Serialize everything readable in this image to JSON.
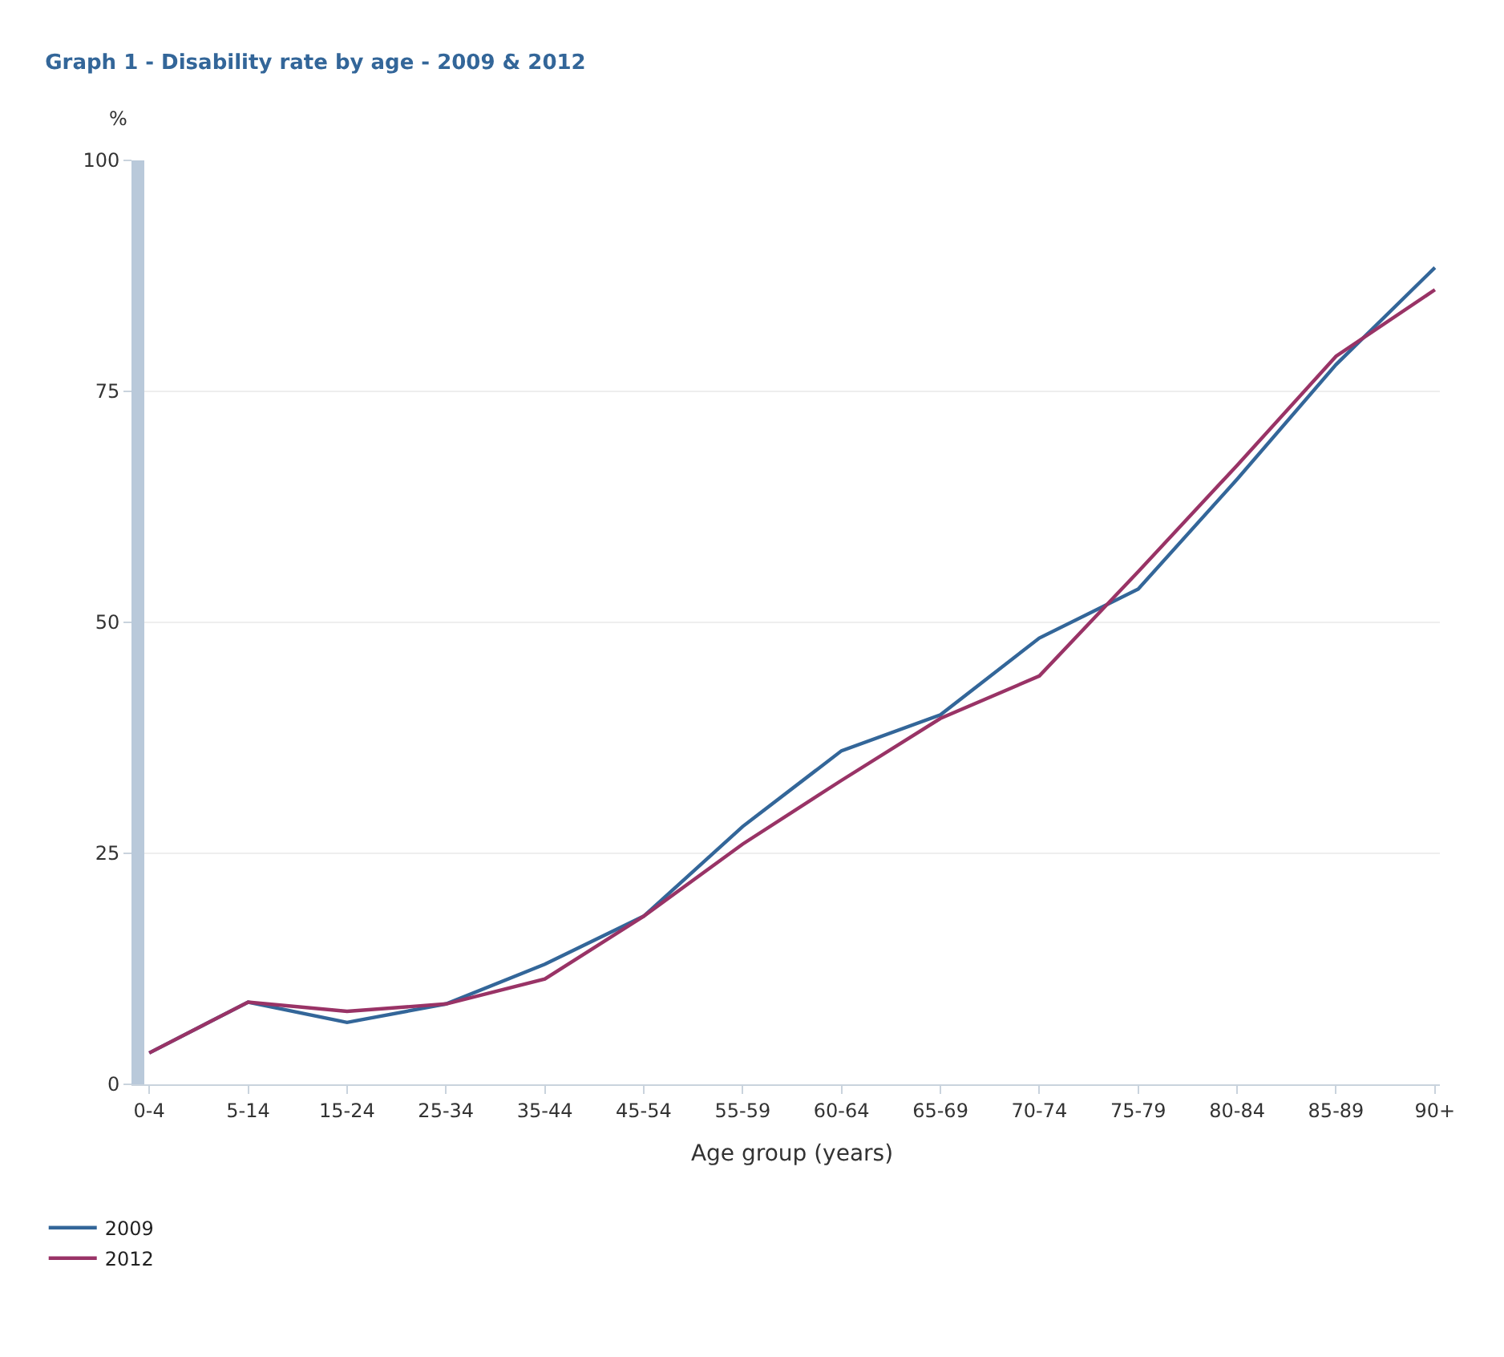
{
  "chart_data": {
    "type": "line",
    "title": "Graph 1 - Disability rate by age - 2009 & 2012",
    "ylabel": "%",
    "xlabel": "Age group (years)",
    "categories": [
      "0-4",
      "5-14",
      "15-24",
      "25-34",
      "35-44",
      "45-54",
      "55-59",
      "60-64",
      "65-69",
      "70-74",
      "75-79",
      "80-84",
      "85-89",
      "90+"
    ],
    "series": [
      {
        "name": "2009",
        "color": "#336699",
        "values": [
          3.4,
          8.9,
          6.7,
          8.7,
          13.0,
          18.2,
          27.9,
          36.1,
          40.0,
          48.3,
          53.6,
          65.5,
          77.9,
          88.4
        ]
      },
      {
        "name": "2012",
        "color": "#993366",
        "values": [
          3.4,
          8.9,
          7.9,
          8.7,
          11.4,
          18.2,
          26.0,
          32.9,
          39.6,
          44.2,
          55.5,
          67.0,
          78.8,
          86.0
        ]
      }
    ],
    "ylim": [
      0,
      100
    ],
    "yticks": [
      0,
      25,
      50,
      75,
      100
    ],
    "grid": "y",
    "legend": "bottom left",
    "marker": "none",
    "line_style": "solid"
  }
}
